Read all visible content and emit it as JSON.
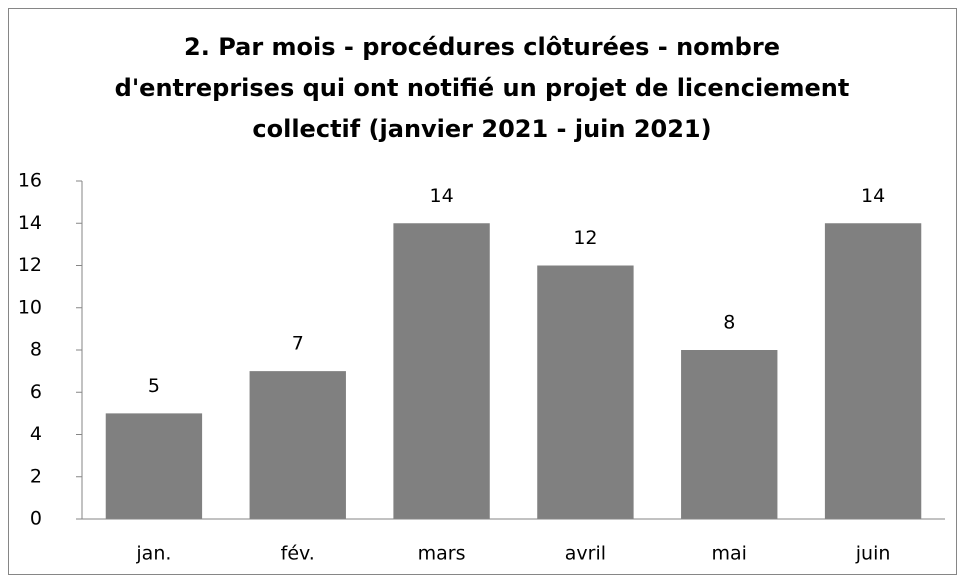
{
  "chart_data": {
    "type": "bar",
    "title": [
      "2. Par mois - procédures clôturées -  nombre",
      "d'entreprises qui ont notifié un projet de licenciement",
      "collectif (janvier 2021 - juin 2021)"
    ],
    "categories": [
      "jan.",
      "fév.",
      "mars",
      "avril",
      "mai",
      "juin"
    ],
    "values": [
      5,
      7,
      14,
      12,
      8,
      14
    ],
    "color": "#808080",
    "ylim": [
      0,
      16
    ],
    "yticks": [
      0,
      2,
      4,
      6,
      8,
      10,
      12,
      14,
      16
    ],
    "grid": false
  }
}
